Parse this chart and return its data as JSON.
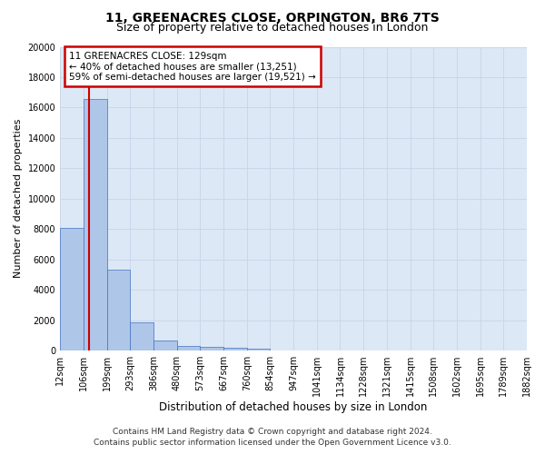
{
  "title1": "11, GREENACRES CLOSE, ORPINGTON, BR6 7TS",
  "title2": "Size of property relative to detached houses in London",
  "xlabel": "Distribution of detached houses by size in London",
  "ylabel": "Number of detached properties",
  "bar_values": [
    8050,
    16550,
    5350,
    1850,
    650,
    320,
    215,
    185,
    150,
    0,
    0,
    0,
    0,
    0,
    0,
    0,
    0,
    0,
    0,
    0
  ],
  "bar_labels": [
    "12sqm",
    "106sqm",
    "199sqm",
    "293sqm",
    "386sqm",
    "480sqm",
    "573sqm",
    "667sqm",
    "760sqm",
    "854sqm",
    "947sqm",
    "1041sqm",
    "1134sqm",
    "1228sqm",
    "1321sqm",
    "1415sqm",
    "1508sqm",
    "1602sqm",
    "1695sqm",
    "1789sqm",
    "1882sqm"
  ],
  "bar_color": "#aec6e8",
  "bar_edge_color": "#4472c4",
  "vline_x": 1.22,
  "vline_color": "#cc0000",
  "annotation_title": "11 GREENACRES CLOSE: 129sqm",
  "annotation_line2": "← 40% of detached houses are smaller (13,251)",
  "annotation_line3": "59% of semi-detached houses are larger (19,521) →",
  "annotation_box_color": "#cc0000",
  "annotation_bg": "#ffffff",
  "ylim": [
    0,
    20000
  ],
  "yticks": [
    0,
    2000,
    4000,
    6000,
    8000,
    10000,
    12000,
    14000,
    16000,
    18000,
    20000
  ],
  "grid_color": "#c8d4e8",
  "background_color": "#dce8f5",
  "footer1": "Contains HM Land Registry data © Crown copyright and database right 2024.",
  "footer2": "Contains public sector information licensed under the Open Government Licence v3.0.",
  "title1_fontsize": 10,
  "title2_fontsize": 9,
  "xlabel_fontsize": 8.5,
  "ylabel_fontsize": 8,
  "tick_fontsize": 7,
  "footer_fontsize": 6.5
}
